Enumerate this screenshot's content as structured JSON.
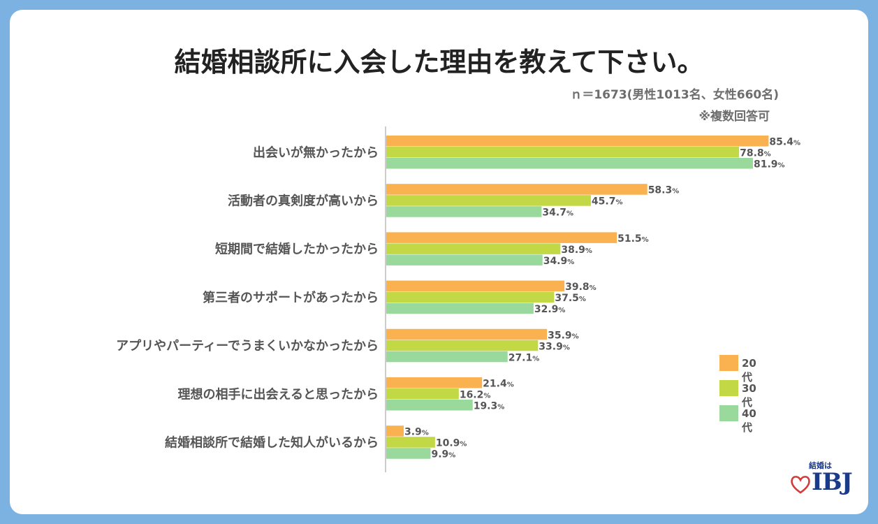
{
  "title": "結婚相談所に入会した理由を教えて下さい。",
  "subtitle_line1": "ｎ＝1673(男性1013名、女性660名)",
  "subtitle_line2": "※複数回答可",
  "logo": {
    "top_text": "結婚は",
    "main_text": "IBJ"
  },
  "colors": {
    "20s": "#f9b24f",
    "30s": "#c2d844",
    "40s": "#99d99c",
    "axis": "#bbbbbb",
    "label": "#555555"
  },
  "chart_data": {
    "type": "bar",
    "orientation": "horizontal",
    "categories": [
      "出会いが無かったから",
      "活動者の真剣度が高いから",
      "短期間で結婚したかったから",
      "第三者のサポートがあったから",
      "アプリやパーティーでうまくいかなかったから",
      "理想の相手に出会えると思ったから",
      "結婚相談所で結婚した知人がいるから"
    ],
    "series": [
      {
        "name": "20代",
        "values": [
          85.4,
          58.3,
          51.5,
          39.8,
          35.9,
          21.4,
          3.9
        ]
      },
      {
        "name": "30代",
        "values": [
          78.8,
          45.7,
          38.9,
          37.5,
          33.9,
          16.2,
          10.9
        ]
      },
      {
        "name": "40代",
        "values": [
          81.9,
          34.7,
          34.9,
          32.9,
          27.1,
          19.3,
          9.9
        ]
      }
    ],
    "unit": "%",
    "xlim": [
      0,
      100
    ],
    "legend_position": "bottom-right",
    "grid": false
  }
}
